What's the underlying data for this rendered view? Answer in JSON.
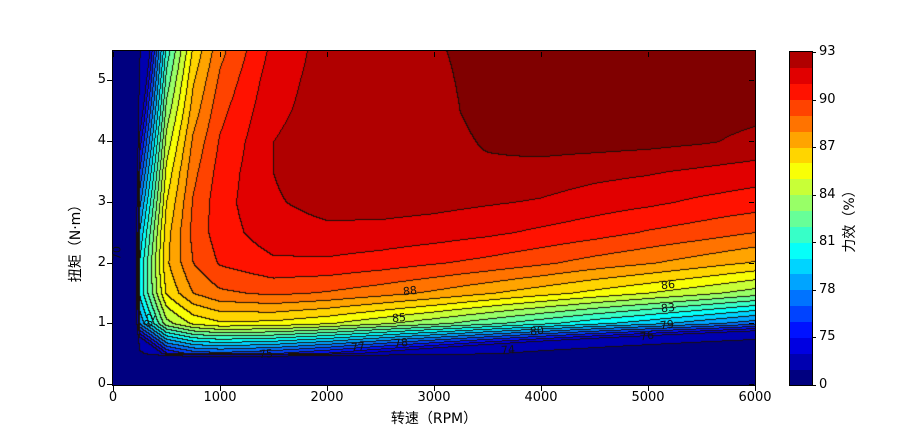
{
  "chart_data": {
    "type": "contour",
    "xlabel": "转速（RPM）",
    "ylabel": "扭矩（N·m）",
    "colorbar_label": "力效（%）",
    "xlim": [
      0,
      6000
    ],
    "ylim": [
      0,
      5.5
    ],
    "grid_on": false,
    "colormap": "jet",
    "levels": [
      70,
      74,
      75,
      76,
      77,
      78,
      79,
      80,
      81,
      82,
      83,
      84,
      85,
      86,
      87,
      88,
      89,
      90,
      91,
      92,
      93
    ],
    "x_ticks": [
      {
        "label": "0",
        "value": 0
      },
      {
        "label": "1000",
        "value": 1000
      },
      {
        "label": "2000",
        "value": 2000
      },
      {
        "label": "3000",
        "value": 3000
      },
      {
        "label": "4000",
        "value": 4000
      },
      {
        "label": "5000",
        "value": 5000
      },
      {
        "label": "6000",
        "value": 6000
      }
    ],
    "y_ticks": [
      {
        "label": "0",
        "value": 0
      },
      {
        "label": "1",
        "value": 1
      },
      {
        "label": "2",
        "value": 2
      },
      {
        "label": "3",
        "value": 3
      },
      {
        "label": "4",
        "value": 4
      },
      {
        "label": "5",
        "value": 5
      }
    ],
    "colorbar_ticks": [
      {
        "label": "93",
        "edge": 21
      },
      {
        "label": "90",
        "edge": 18
      },
      {
        "label": "87",
        "edge": 15
      },
      {
        "label": "84",
        "edge": 12
      },
      {
        "label": "81",
        "edge": 9
      },
      {
        "label": "78",
        "edge": 6
      },
      {
        "label": "75",
        "edge": 3
      },
      {
        "label": "0",
        "edge": 0
      }
    ],
    "grid": {
      "rpm_points": [
        0,
        250,
        500,
        750,
        1000,
        1500,
        2000,
        2500,
        3000,
        3500,
        4000,
        4500,
        5000,
        5500,
        6000
      ],
      "torque_points": [
        0,
        0.5,
        1,
        1.5,
        2,
        2.5,
        3,
        3.5,
        4,
        4.5,
        5,
        5.5
      ],
      "efficiency": [
        [
          0,
          0,
          0,
          0,
          0,
          0,
          0,
          0,
          0,
          0,
          0,
          0,
          0,
          0,
          0
        ],
        [
          0,
          68.9,
          74.8,
          76.3,
          76.6,
          76.0,
          74.8,
          73.3,
          71.8,
          70.3,
          68.8,
          67.4,
          66.0,
          64.7,
          63.4
        ],
        [
          0,
          78.1,
          83.6,
          85.2,
          85.8,
          85.7,
          85.1,
          84.2,
          83.3,
          82.3,
          81.3,
          80.3,
          79.4,
          78.4,
          77.4
        ],
        [
          0,
          80.2,
          86.1,
          88.0,
          88.8,
          89.2,
          88.9,
          88.4,
          87.8,
          87.1,
          86.4,
          85.7,
          85.0,
          84.3,
          83.5
        ],
        [
          0,
          80.1,
          86.8,
          89.0,
          90.1,
          90.8,
          90.8,
          90.5,
          90.1,
          89.7,
          89.2,
          88.6,
          88.1,
          87.5,
          86.9
        ],
        [
          0,
          79.1,
          86.6,
          89.3,
          90.5,
          91.6,
          91.8,
          91.7,
          91.5,
          91.2,
          90.8,
          90.4,
          89.9,
          89.5,
          89.0
        ],
        [
          0,
          77.7,
          86.0,
          89.1,
          90.6,
          91.9,
          92.3,
          92.4,
          92.3,
          92.1,
          91.9,
          91.5,
          91.2,
          90.8,
          90.5
        ],
        [
          0,
          76.1,
          85.3,
          88.7,
          90.4,
          92.0,
          92.6,
          92.9,
          92.9,
          92.8,
          92.6,
          92.3,
          92.1,
          91.8,
          91.5
        ],
        [
          0,
          74.5,
          84.4,
          88.2,
          90.1,
          92.0,
          92.5,
          92.6,
          92.6,
          93.1,
          93.4,
          93.4,
          93.3,
          93.1,
          92.8
        ],
        [
          0,
          72.8,
          83.4,
          87.5,
          89.7,
          91.8,
          92.4,
          92.6,
          92.7,
          93.3,
          93.5,
          93.5,
          93.4,
          93.3,
          93.2
        ],
        [
          0,
          71.2,
          82.4,
          86.9,
          89.2,
          91.6,
          92.4,
          92.7,
          92.8,
          93.3,
          93.6,
          93.6,
          93.5,
          93.4,
          93.3
        ],
        [
          0,
          69.5,
          81.4,
          86.2,
          88.7,
          91.3,
          92.4,
          92.8,
          92.9,
          93.3,
          93.6,
          93.6,
          93.6,
          93.5,
          93.3
        ]
      ]
    },
    "contour_labels": [
      {
        "value": "70",
        "rpm": 40,
        "torque": 2.15,
        "rotation": -90
      },
      {
        "value": "82",
        "rpm": 346,
        "torque": 1.06,
        "rotation": -70
      },
      {
        "value": "75",
        "rpm": 1430,
        "torque": 0.5,
        "rotation": -4
      },
      {
        "value": "77",
        "rpm": 2290,
        "torque": 0.61,
        "rotation": -5
      },
      {
        "value": "78",
        "rpm": 2690,
        "torque": 0.67,
        "rotation": -6
      },
      {
        "value": "74",
        "rpm": 3690,
        "torque": 0.56,
        "rotation": -4
      },
      {
        "value": "85",
        "rpm": 2670,
        "torque": 1.09,
        "rotation": -5
      },
      {
        "value": "88",
        "rpm": 2780,
        "torque": 1.53,
        "rotation": -7
      },
      {
        "value": "80",
        "rpm": 3960,
        "torque": 0.87,
        "rotation": -7
      },
      {
        "value": "76",
        "rpm": 4990,
        "torque": 0.79,
        "rotation": -8
      },
      {
        "value": "79",
        "rpm": 5180,
        "torque": 0.97,
        "rotation": -7
      },
      {
        "value": "83",
        "rpm": 5190,
        "torque": 1.25,
        "rotation": -6
      },
      {
        "value": "86",
        "rpm": 5190,
        "torque": 1.63,
        "rotation": -6
      }
    ],
    "line_color": "#1a0f0a",
    "background_color": "#ffffff"
  }
}
